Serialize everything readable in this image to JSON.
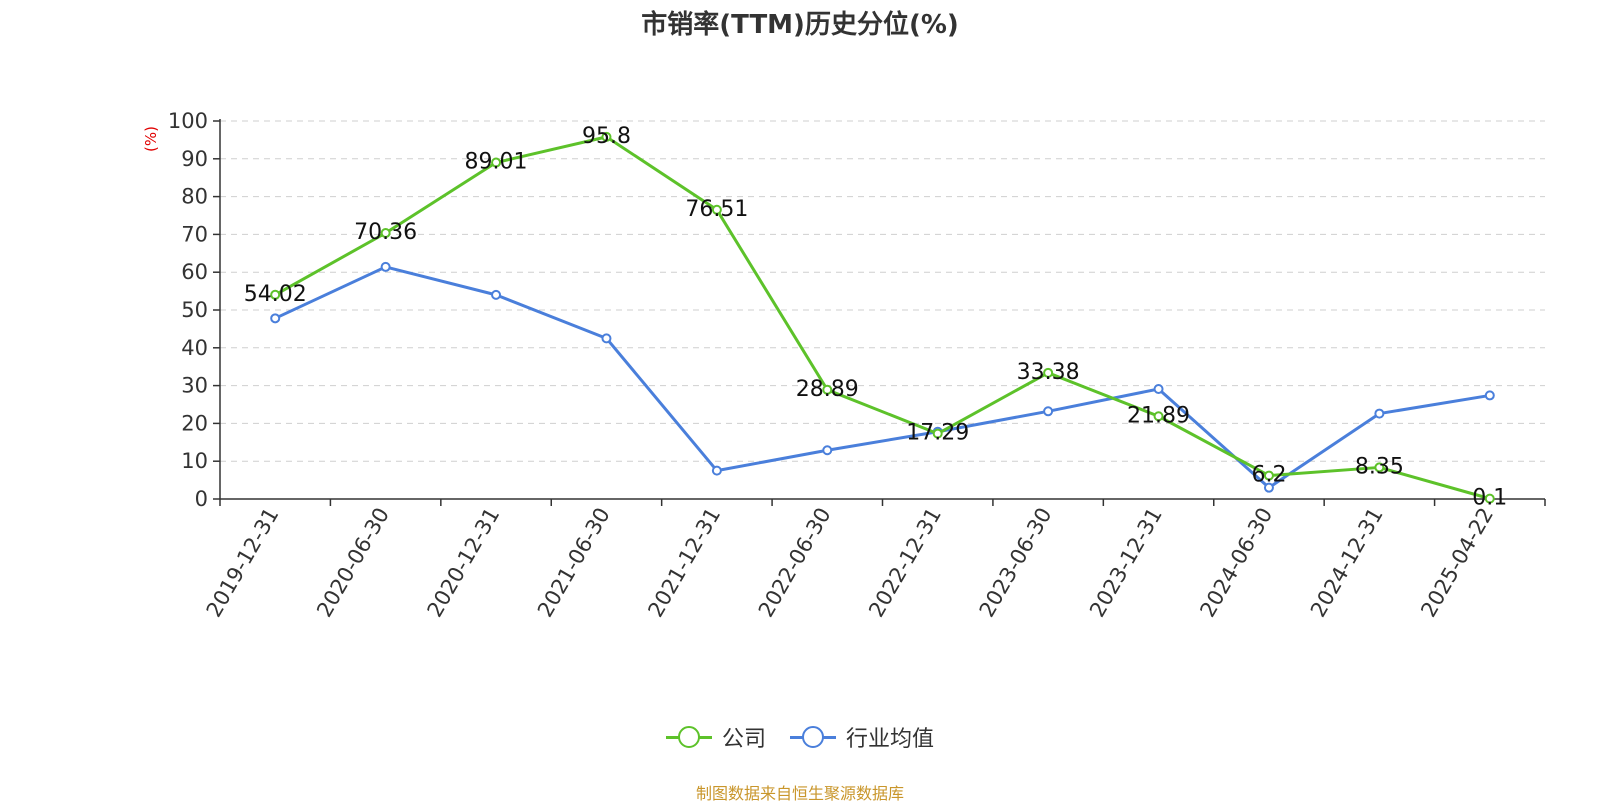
{
  "title": "市销率(TTM)历史分位(%)",
  "unit_label": "(%)",
  "source": "制图数据来自恒生聚源数据库",
  "chart_data": {
    "type": "line",
    "title": "市销率(TTM)历史分位(%)",
    "ylabel": "(%)",
    "xlabel": "",
    "ylim": [
      0,
      100
    ],
    "yticks": [
      0,
      10,
      20,
      30,
      40,
      50,
      60,
      70,
      80,
      90,
      100
    ],
    "grid": true,
    "legend_position": "bottom",
    "categories": [
      "2019-12-31",
      "2020-06-30",
      "2020-12-31",
      "2021-06-30",
      "2021-12-31",
      "2022-06-30",
      "2022-12-31",
      "2023-06-30",
      "2023-12-31",
      "2024-06-30",
      "2024-12-31",
      "2025-04-22"
    ],
    "series": [
      {
        "name": "公司",
        "color": "#5dc22a",
        "values": [
          54.02,
          70.36,
          89.01,
          95.8,
          76.51,
          28.89,
          17.29,
          33.38,
          21.89,
          6.2,
          8.35,
          0.1
        ],
        "labels": [
          "54.02",
          "70.36",
          "89.01",
          "95.8",
          "76.51",
          "28.89",
          "17.29",
          "33.38",
          "21.89",
          "6.2",
          "8.35",
          "0.1"
        ]
      },
      {
        "name": "行业均值",
        "color": "#4a7fdb",
        "values": [
          47.8,
          61.4,
          54.0,
          42.5,
          7.5,
          12.9,
          17.8,
          23.2,
          29.1,
          3.0,
          22.6,
          27.4
        ]
      }
    ]
  },
  "legend": [
    {
      "label": "公司",
      "color": "#5dc22a"
    },
    {
      "label": "行业均值",
      "color": "#4a7fdb"
    }
  ]
}
